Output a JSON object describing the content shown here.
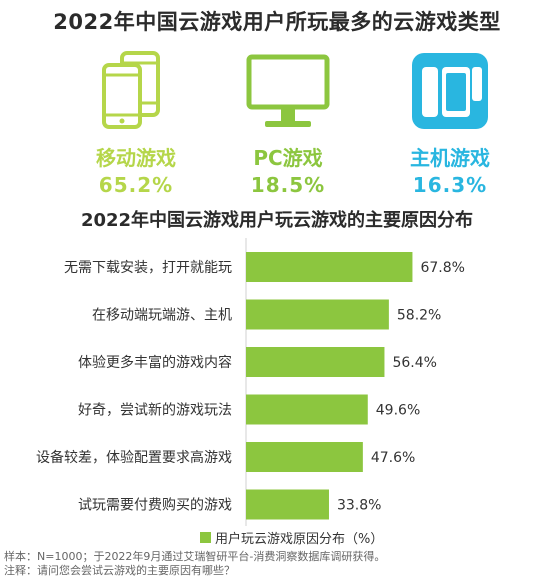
{
  "title": "2022年中国云游戏用户所玩最多的云游戏类型",
  "colors": {
    "green": "#8cc63f",
    "lime": "#b5d64a",
    "cyan": "#29b6e0",
    "bar": "#8cc63f"
  },
  "platforms": [
    {
      "name": "移动游戏",
      "value": "65.2%",
      "icon": "smartphones-icon",
      "color": "#b5d64a"
    },
    {
      "name": "PC游戏",
      "value": "18.5%",
      "icon": "monitor-icon",
      "color": "#8cc63f"
    },
    {
      "name": "主机游戏",
      "value": "16.3%",
      "icon": "game-console-icon",
      "color": "#29b6e0"
    }
  ],
  "chart_data": {
    "type": "bar",
    "orientation": "horizontal",
    "title": "2022年中国云游戏用户玩云游戏的主要原因分布",
    "categories": [
      "无需下载安装，打开就能玩",
      "在移动端玩端游、主机",
      "体验更多丰富的游戏内容",
      "好奇，尝试新的游戏玩法",
      "设备较差，体验配置要求高游戏",
      "试玩需要付费购买的游戏"
    ],
    "series": [
      {
        "name": "用户玩云游戏原因分布（%）",
        "values": [
          67.8,
          58.2,
          56.4,
          49.6,
          47.6,
          33.8
        ]
      }
    ],
    "value_labels": [
      "67.8%",
      "58.2%",
      "56.4%",
      "49.6%",
      "47.6%",
      "33.8%"
    ],
    "xlim": [
      0,
      100
    ],
    "grid": false,
    "legend": "bottom"
  },
  "legend_label": "用户玩云游戏原因分布（%）",
  "notes": {
    "sample": "样本：N=1000；于2022年9月通过艾瑞智研平台-消费洞察数据库调研获得。",
    "note": "注释：请问您会尝试云游戏的主要原因有哪些？"
  }
}
